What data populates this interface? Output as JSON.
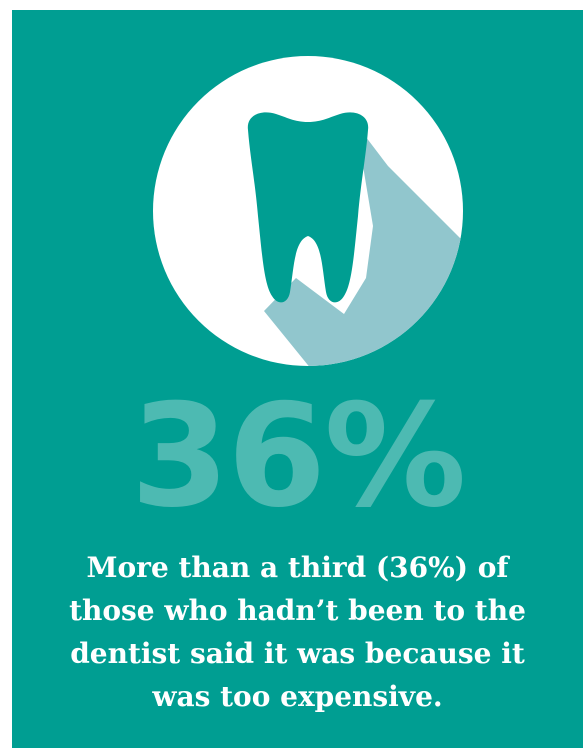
{
  "stat": {
    "value": "36%"
  },
  "caption": {
    "text": "More than a third (36%) of those who hadn’t been to the dentist said it was because it was too expensive."
  },
  "colors": {
    "background": "#009e92",
    "circle": "#ffffff",
    "shadow": "#91c6cd",
    "tooth": "#009e92",
    "stat_text": "#4dbab2",
    "caption_text": "#ffffff"
  },
  "icons": {
    "main": "tooth-icon"
  }
}
